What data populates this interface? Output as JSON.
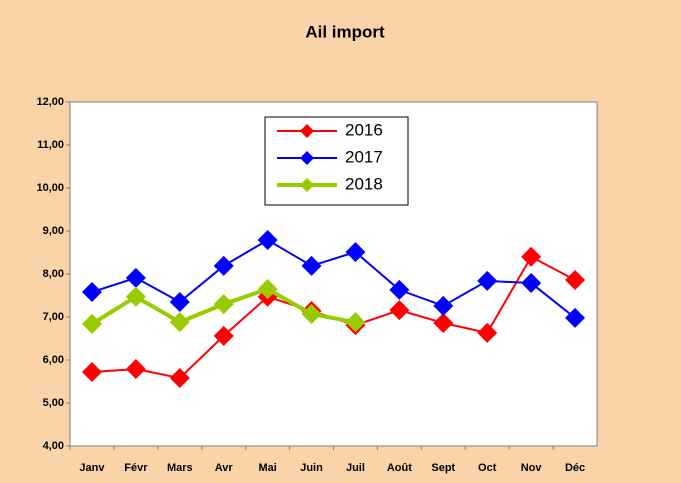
{
  "chart_data": {
    "type": "line",
    "title": "Ail import",
    "categories": [
      "Janv",
      "Févr",
      "Mars",
      "Avr",
      "Mai",
      "Juin",
      "Juil",
      "Août",
      "Sept",
      "Oct",
      "Nov",
      "Déc"
    ],
    "series": [
      {
        "name": "2016",
        "color": "#ff0000",
        "values": [
          5.72,
          5.79,
          5.58,
          6.56,
          7.47,
          7.14,
          6.81,
          7.16,
          6.86,
          6.63,
          8.4,
          7.86
        ]
      },
      {
        "name": "2017",
        "color": "#0000ff",
        "values": [
          7.58,
          7.91,
          7.35,
          8.19,
          8.79,
          8.19,
          8.51,
          7.63,
          7.26,
          7.84,
          7.79,
          6.98
        ]
      },
      {
        "name": "2018",
        "color": "#99cc00",
        "values": [
          6.84,
          7.47,
          6.88,
          7.3,
          7.65,
          7.07,
          6.88,
          null,
          null,
          null,
          null,
          null
        ]
      }
    ],
    "ylim": [
      4,
      12
    ],
    "yticks": [
      {
        "value": 4,
        "label": "4,00"
      },
      {
        "value": 5,
        "label": "5,00"
      },
      {
        "value": 6,
        "label": "6,00"
      },
      {
        "value": 7,
        "label": "7,00"
      },
      {
        "value": 8,
        "label": "8,00"
      },
      {
        "value": 9,
        "label": "9,00"
      },
      {
        "value": 10,
        "label": "10,00"
      },
      {
        "value": 11,
        "label": "11,00"
      },
      {
        "value": 12,
        "label": "12,00"
      }
    ],
    "legend": "top"
  }
}
